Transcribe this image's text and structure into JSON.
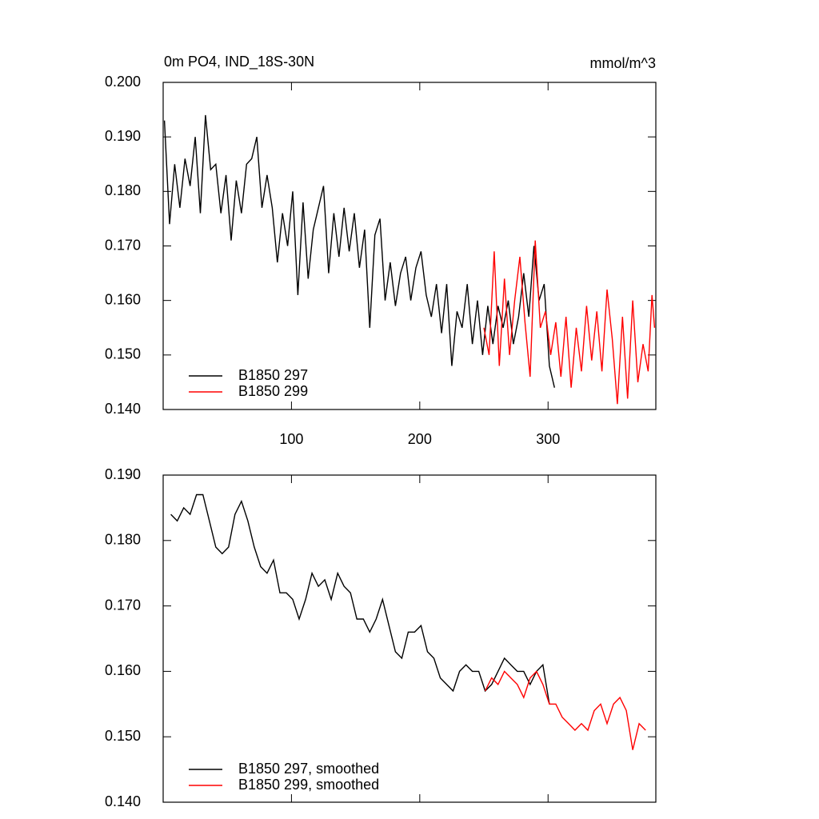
{
  "chart_data": [
    {
      "type": "line",
      "title": "0m PO4, IND_18S-30N",
      "units": "mmol/m^3",
      "xlim": [
        0,
        384
      ],
      "xticks": [
        100,
        200,
        300
      ],
      "x_tick_labels": true,
      "ylim": [
        0.14,
        0.2
      ],
      "yticks": [
        {
          "value": 0.14,
          "label": "0.140"
        },
        {
          "value": 0.15,
          "label": "0.150"
        },
        {
          "value": 0.16,
          "label": "0.160"
        },
        {
          "value": 0.17,
          "label": "0.170"
        },
        {
          "value": 0.18,
          "label": "0.180"
        },
        {
          "value": 0.19,
          "label": "0.190"
        },
        {
          "value": 0.2,
          "label": "0.200"
        }
      ],
      "series": [
        {
          "name": "B1850 297",
          "color": "#000000",
          "x": [
            1,
            5,
            9,
            13,
            17,
            21,
            25,
            29,
            33,
            37,
            41,
            45,
            49,
            53,
            57,
            61,
            65,
            69,
            73,
            77,
            81,
            85,
            89,
            93,
            97,
            101,
            105,
            109,
            113,
            117,
            121,
            125,
            129,
            133,
            137,
            141,
            145,
            149,
            153,
            157,
            161,
            165,
            169,
            173,
            177,
            181,
            185,
            189,
            193,
            197,
            201,
            205,
            209,
            213,
            217,
            221,
            225,
            229,
            233,
            237,
            241,
            245,
            249,
            253,
            257,
            261,
            265,
            269,
            273,
            277,
            281,
            285,
            289,
            293,
            297,
            301,
            305
          ],
          "values": [
            0.193,
            0.174,
            0.185,
            0.177,
            0.186,
            0.181,
            0.19,
            0.176,
            0.194,
            0.184,
            0.185,
            0.176,
            0.183,
            0.171,
            0.182,
            0.176,
            0.185,
            0.186,
            0.19,
            0.177,
            0.183,
            0.177,
            0.167,
            0.176,
            0.17,
            0.18,
            0.161,
            0.178,
            0.164,
            0.173,
            0.177,
            0.181,
            0.165,
            0.176,
            0.168,
            0.177,
            0.169,
            0.176,
            0.166,
            0.173,
            0.155,
            0.172,
            0.175,
            0.16,
            0.167,
            0.159,
            0.165,
            0.168,
            0.16,
            0.166,
            0.169,
            0.161,
            0.157,
            0.163,
            0.154,
            0.163,
            0.148,
            0.158,
            0.155,
            0.163,
            0.152,
            0.16,
            0.15,
            0.159,
            0.152,
            0.159,
            0.155,
            0.16,
            0.152,
            0.157,
            0.165,
            0.157,
            0.17,
            0.16,
            0.163,
            0.148,
            0.144
          ]
        },
        {
          "name": "B1850 299",
          "color": "#ff0000",
          "x": [
            250,
            254,
            258,
            262,
            266,
            270,
            274,
            278,
            282,
            286,
            290,
            294,
            298,
            302,
            306,
            310,
            314,
            318,
            322,
            326,
            330,
            334,
            338,
            342,
            346,
            350,
            354,
            358,
            362,
            366,
            370,
            374,
            378,
            381,
            383
          ],
          "values": [
            0.155,
            0.15,
            0.169,
            0.148,
            0.164,
            0.15,
            0.16,
            0.168,
            0.156,
            0.146,
            0.171,
            0.155,
            0.158,
            0.15,
            0.156,
            0.146,
            0.157,
            0.144,
            0.155,
            0.147,
            0.159,
            0.149,
            0.158,
            0.147,
            0.162,
            0.153,
            0.141,
            0.157,
            0.142,
            0.16,
            0.145,
            0.152,
            0.147,
            0.161,
            0.155
          ]
        }
      ]
    },
    {
      "type": "line",
      "xlim": [
        0,
        384
      ],
      "xticks": [
        100,
        200,
        300
      ],
      "x_tick_labels": false,
      "ylim": [
        0.14,
        0.19
      ],
      "yticks": [
        {
          "value": 0.14,
          "label": "0.140"
        },
        {
          "value": 0.15,
          "label": "0.150"
        },
        {
          "value": 0.16,
          "label": "0.160"
        },
        {
          "value": 0.17,
          "label": "0.170"
        },
        {
          "value": 0.18,
          "label": "0.180"
        },
        {
          "value": 0.19,
          "label": "0.190"
        }
      ],
      "series": [
        {
          "name": "B1850 297, smoothed",
          "color": "#000000",
          "x": [
            6,
            11,
            16,
            21,
            26,
            31,
            36,
            41,
            46,
            51,
            56,
            61,
            66,
            71,
            76,
            81,
            86,
            91,
            96,
            101,
            106,
            111,
            116,
            121,
            126,
            131,
            136,
            141,
            146,
            151,
            156,
            161,
            166,
            171,
            176,
            181,
            186,
            191,
            196,
            201,
            206,
            211,
            216,
            221,
            226,
            231,
            236,
            241,
            246,
            251,
            256,
            261,
            266,
            271,
            276,
            281,
            286,
            291,
            296,
            301
          ],
          "values": [
            0.184,
            0.183,
            0.185,
            0.184,
            0.187,
            0.187,
            0.183,
            0.179,
            0.178,
            0.179,
            0.184,
            0.186,
            0.183,
            0.179,
            0.176,
            0.175,
            0.177,
            0.172,
            0.172,
            0.171,
            0.168,
            0.171,
            0.175,
            0.173,
            0.174,
            0.171,
            0.175,
            0.173,
            0.172,
            0.168,
            0.168,
            0.166,
            0.168,
            0.171,
            0.167,
            0.163,
            0.162,
            0.166,
            0.166,
            0.167,
            0.163,
            0.162,
            0.159,
            0.158,
            0.157,
            0.16,
            0.161,
            0.16,
            0.16,
            0.157,
            0.158,
            0.16,
            0.162,
            0.161,
            0.16,
            0.16,
            0.158,
            0.16,
            0.161,
            0.155
          ]
        },
        {
          "name": "B1850 299, smoothed",
          "color": "#ff0000",
          "x": [
            251,
            256,
            261,
            266,
            271,
            276,
            281,
            286,
            291,
            296,
            301,
            306,
            311,
            316,
            321,
            326,
            331,
            336,
            341,
            346,
            351,
            356,
            361,
            366,
            371,
            376
          ],
          "values": [
            0.157,
            0.159,
            0.158,
            0.16,
            0.159,
            0.158,
            0.156,
            0.159,
            0.16,
            0.158,
            0.155,
            0.155,
            0.153,
            0.152,
            0.151,
            0.152,
            0.151,
            0.154,
            0.155,
            0.152,
            0.155,
            0.156,
            0.154,
            0.148,
            0.152,
            0.151
          ]
        }
      ]
    }
  ]
}
